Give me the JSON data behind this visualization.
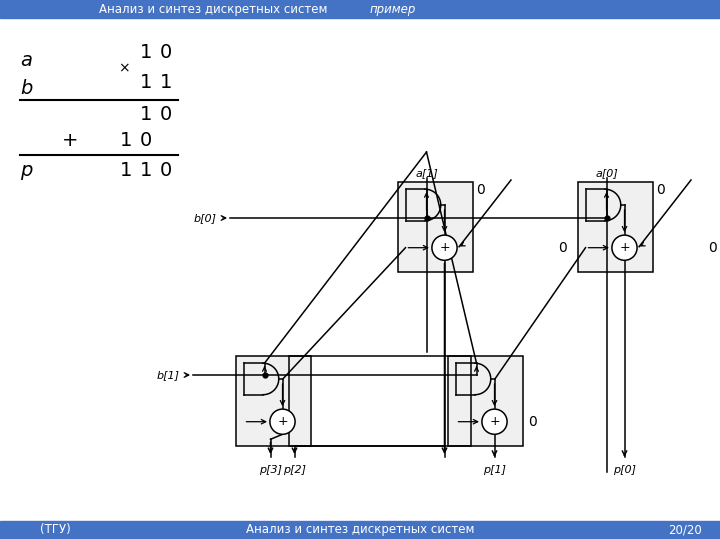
{
  "header_text1": "Анализ и синтез дискретных систем",
  "header_text2": "пример",
  "footer_left": "(ТГУ)",
  "footer_center": "Анализ и синтез дискретных систем",
  "footer_right": "20/20",
  "header_bg": "#4472C4",
  "footer_bg": "#4472C4",
  "bg_color": "#FFFFFF",
  "header_text_color": "#FFFFFF",
  "footer_text_color": "#FFFFFF"
}
